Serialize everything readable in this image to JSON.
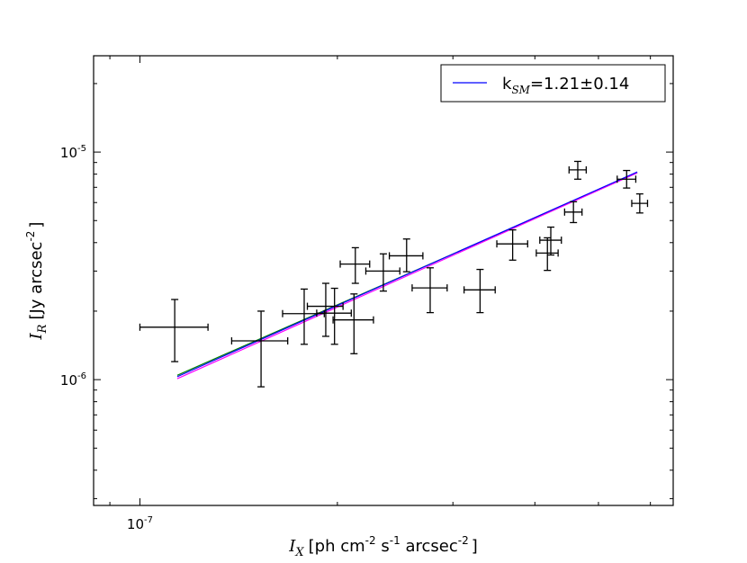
{
  "chart_data": {
    "type": "scatter",
    "xscale": "log",
    "yscale": "log",
    "xlim": [
      8.5e-08,
      6.5e-07
    ],
    "ylim": [
      2.8e-07,
      2.65e-05
    ],
    "grid": false,
    "legend_position": "top-right",
    "x_ticks": [
      {
        "value": 1e-07,
        "base": "10",
        "exp": "-7"
      }
    ],
    "y_ticks": [
      {
        "value": 1e-06,
        "base": "10",
        "exp": "-6"
      },
      {
        "value": 1e-05,
        "base": "10",
        "exp": "-5"
      }
    ],
    "xlabel": {
      "sym": "I",
      "sub": "X",
      "pre": "[ph cm",
      "e1": "-2",
      "mid": " s",
      "e2": "-1",
      "post": " arcsec",
      "e3": "-2",
      "end": "]"
    },
    "ylabel": {
      "sym": "I",
      "sub": "R",
      "pre": "[Jy arcsec",
      "e1": "-2",
      "end": "]"
    },
    "legend": {
      "label_pre": "k",
      "label_sub": "SM",
      "label_post": "=1.21±0.14",
      "color": "#0000ff"
    },
    "points": [
      {
        "x": 1.13e-07,
        "y": 1.7e-06,
        "xlo": 1e-07,
        "xhi": 1.27e-07,
        "ylo": 1.2e-06,
        "yhi": 2.25e-06
      },
      {
        "x": 1.53e-07,
        "y": 1.48e-06,
        "xlo": 1.38e-07,
        "xhi": 1.68e-07,
        "ylo": 9.3e-07,
        "yhi": 2e-06
      },
      {
        "x": 1.78e-07,
        "y": 1.95e-06,
        "xlo": 1.65e-07,
        "xhi": 1.91e-07,
        "ylo": 1.43e-06,
        "yhi": 2.5e-06
      },
      {
        "x": 1.92e-07,
        "y": 2.1e-06,
        "xlo": 1.8e-07,
        "xhi": 2.04e-07,
        "ylo": 1.55e-06,
        "yhi": 2.65e-06
      },
      {
        "x": 1.98e-07,
        "y": 1.96e-06,
        "xlo": 1.86e-07,
        "xhi": 2.1e-07,
        "ylo": 1.43e-06,
        "yhi": 2.52e-06
      },
      {
        "x": 2.12e-07,
        "y": 1.83e-06,
        "xlo": 1.97e-07,
        "xhi": 2.27e-07,
        "ylo": 1.3e-06,
        "yhi": 2.38e-06
      },
      {
        "x": 2.13e-07,
        "y": 3.22e-06,
        "xlo": 2.02e-07,
        "xhi": 2.24e-07,
        "ylo": 2.65e-06,
        "yhi": 3.8e-06
      },
      {
        "x": 2.35e-07,
        "y": 3e-06,
        "xlo": 2.21e-07,
        "xhi": 2.49e-07,
        "ylo": 2.45e-06,
        "yhi": 3.57e-06
      },
      {
        "x": 2.55e-07,
        "y": 3.5e-06,
        "xlo": 2.4e-07,
        "xhi": 2.7e-07,
        "ylo": 2.98e-06,
        "yhi": 4.15e-06
      },
      {
        "x": 2.77e-07,
        "y": 2.53e-06,
        "xlo": 2.6e-07,
        "xhi": 2.94e-07,
        "ylo": 1.97e-06,
        "yhi": 3.1e-06
      },
      {
        "x": 3.3e-07,
        "y": 2.48e-06,
        "xlo": 3.12e-07,
        "xhi": 3.48e-07,
        "ylo": 1.97e-06,
        "yhi": 3.05e-06
      },
      {
        "x": 3.7e-07,
        "y": 3.95e-06,
        "xlo": 3.5e-07,
        "xhi": 3.9e-07,
        "ylo": 3.35e-06,
        "yhi": 4.55e-06
      },
      {
        "x": 4.18e-07,
        "y": 3.6e-06,
        "xlo": 4.02e-07,
        "xhi": 4.34e-07,
        "ylo": 3.02e-06,
        "yhi": 4.2e-06
      },
      {
        "x": 4.23e-07,
        "y": 4.1e-06,
        "xlo": 4.07e-07,
        "xhi": 4.39e-07,
        "ylo": 3.53e-06,
        "yhi": 4.68e-06
      },
      {
        "x": 4.58e-07,
        "y": 5.45e-06,
        "xlo": 4.44e-07,
        "xhi": 4.72e-07,
        "ylo": 4.9e-06,
        "yhi": 6.05e-06
      },
      {
        "x": 4.65e-07,
        "y": 8.35e-06,
        "xlo": 4.51e-07,
        "xhi": 4.79e-07,
        "ylo": 7.6e-06,
        "yhi": 9.1e-06
      },
      {
        "x": 5.52e-07,
        "y": 7.6e-06,
        "xlo": 5.34e-07,
        "xhi": 5.7e-07,
        "ylo": 6.95e-06,
        "yhi": 8.3e-06
      },
      {
        "x": 5.78e-07,
        "y": 5.95e-06,
        "xlo": 5.62e-07,
        "xhi": 5.94e-07,
        "ylo": 5.4e-06,
        "yhi": 6.55e-06
      }
    ],
    "fit_lines": [
      {
        "color": "#008000",
        "x": [
          1.14e-07,
          5.73e-07
        ],
        "y": [
          1.045e-06,
          8.1e-06
        ]
      },
      {
        "color": "#ff00ff",
        "x": [
          1.14e-07,
          5.73e-07
        ],
        "y": [
          1.01e-06,
          8.1e-06
        ]
      },
      {
        "color": "#0000ff",
        "x": [
          1.14e-07,
          5.73e-07
        ],
        "y": [
          1.03e-06,
          8.18e-06
        ]
      }
    ]
  }
}
